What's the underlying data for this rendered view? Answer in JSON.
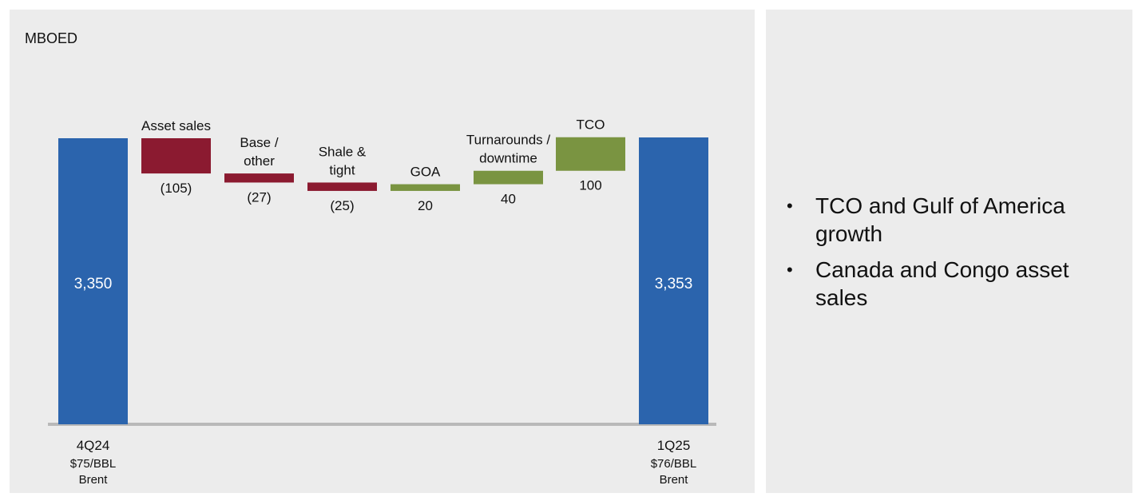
{
  "chart_data": {
    "type": "waterfall",
    "unit_label": "MBOED",
    "start": {
      "label": "4Q24",
      "sublabel_1": "$75/BBL",
      "sublabel_2": "Brent",
      "value": 3350,
      "value_label": "3,350"
    },
    "steps": [
      {
        "label_lines": [
          "Asset sales"
        ],
        "delta": -105,
        "value_label": "(105)"
      },
      {
        "label_lines": [
          "Base /",
          "other"
        ],
        "delta": -27,
        "value_label": "(27)"
      },
      {
        "label_lines": [
          "Shale &",
          "tight"
        ],
        "delta": -25,
        "value_label": "(25)"
      },
      {
        "label_lines": [
          "GOA"
        ],
        "delta": 20,
        "value_label": "20"
      },
      {
        "label_lines": [
          "Turnarounds /",
          "downtime"
        ],
        "delta": 40,
        "value_label": "40"
      },
      {
        "label_lines": [
          "TCO"
        ],
        "delta": 100,
        "value_label": "100"
      }
    ],
    "end": {
      "label": "1Q25",
      "sublabel_1": "$76/BBL",
      "sublabel_2": "Brent",
      "value": 3353,
      "value_label": "3,353"
    },
    "colors": {
      "total": "#2b64ad",
      "decrease": "#8b1a30",
      "increase": "#7a9441",
      "axis": "#b9b9b9"
    }
  },
  "notes": {
    "bullets": [
      "TCO and Gulf of America growth",
      "Canada and Congo asset sales"
    ],
    "bullet_glyph": "•"
  }
}
